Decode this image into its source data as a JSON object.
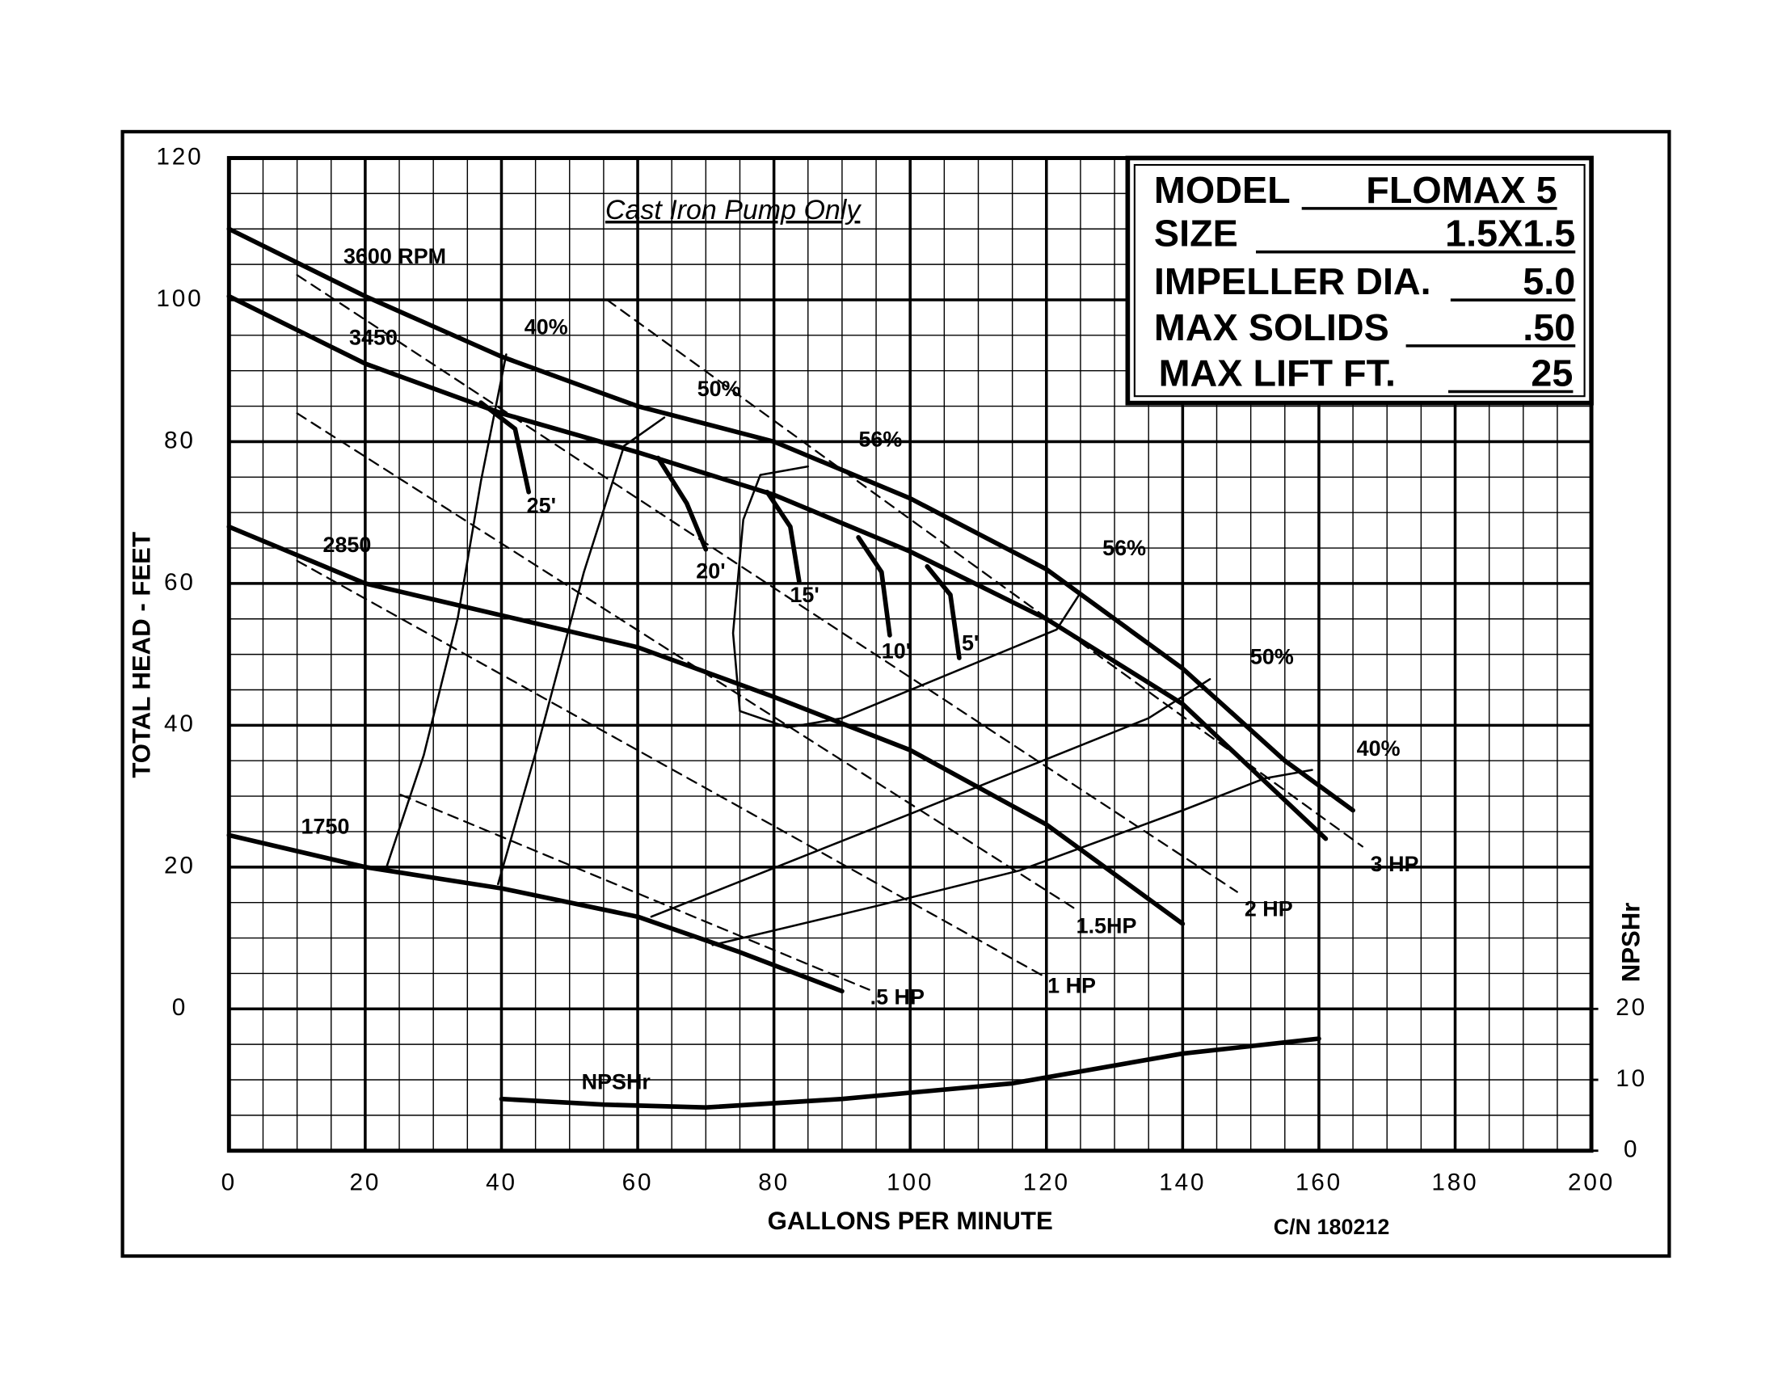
{
  "chart_data": {
    "type": "line",
    "title": "Cast Iron Pump Only",
    "xlabel": "GALLONS PER MINUTE",
    "ylabel": "TOTAL HEAD - FEET",
    "y2label": "NPSHr",
    "note": "C/N 180212",
    "xlim": [
      0,
      200
    ],
    "ylim": [
      -20,
      120
    ],
    "y2lim": [
      0,
      140
    ],
    "xticks": [
      0,
      20,
      40,
      60,
      80,
      100,
      120,
      140,
      160,
      180,
      200
    ],
    "yticks": [
      0,
      20,
      40,
      60,
      80,
      100,
      120
    ],
    "y2ticks": [
      0,
      10,
      20
    ],
    "grid": true,
    "minor_grid_step": 5,
    "info": [
      {
        "label": "MODEL",
        "value": "FLOMAX 5"
      },
      {
        "label": "SIZE",
        "value": "1.5X1.5"
      },
      {
        "label": "IMPELLER DIA.",
        "value": "5.0"
      },
      {
        "label": "MAX SOLIDS",
        "value": ".50"
      },
      {
        "label": "MAX LIFT FT.",
        "value": "25"
      }
    ],
    "series": [
      {
        "name": "3600 RPM",
        "style": "bold",
        "color": "#000000",
        "x": [
          0,
          20,
          40,
          60,
          80,
          100,
          120,
          140,
          155,
          165
        ],
        "y": [
          110,
          100.5,
          92,
          85,
          80,
          72,
          62,
          48,
          35,
          28
        ]
      },
      {
        "name": "3450",
        "style": "bold",
        "color": "#000000",
        "x": [
          0,
          20,
          40,
          60,
          80,
          100,
          120,
          140,
          161
        ],
        "y": [
          100.5,
          91,
          84,
          78.5,
          72.5,
          64.5,
          55,
          43,
          24
        ]
      },
      {
        "name": "2850",
        "style": "bold",
        "color": "#000000",
        "x": [
          0,
          20,
          40,
          60,
          80,
          100,
          120,
          140
        ],
        "y": [
          68,
          60,
          55.5,
          51,
          44,
          36.5,
          26,
          12
        ]
      },
      {
        "name": "1750",
        "style": "bold",
        "color": "#000000",
        "x": [
          0,
          20,
          40,
          60,
          75,
          90
        ],
        "y": [
          24.5,
          20,
          17,
          13,
          8,
          2.5
        ]
      },
      {
        "name": "40%",
        "style": "thin",
        "color": "#000000",
        "x": [
          23.2,
          28.6,
          33.6,
          37,
          40.7
        ],
        "y": [
          20.2,
          35.8,
          55.2,
          74.5,
          92.3
        ]
      },
      {
        "name": "50%",
        "style": "thin",
        "color": "#000000",
        "x": [
          39.5,
          45.4,
          52.1,
          58,
          63.9
        ],
        "y": [
          17.6,
          37.4,
          61.6,
          79.4,
          83.4
        ]
      },
      {
        "name": "56%",
        "style": "thin",
        "color": "#000000",
        "x": [
          85,
          78,
          75.5,
          74,
          75,
          82
        ],
        "y": [
          76.5,
          75.3,
          69,
          53,
          42,
          39.7
        ]
      },
      {
        "name": "56%",
        "style": "thin",
        "color": "#000000",
        "x": [
          82,
          90,
          121.5,
          125
        ],
        "y": [
          39.7,
          41,
          53.5,
          58.7
        ]
      },
      {
        "name": "50%",
        "style": "thin",
        "color": "#000000",
        "x": [
          62,
          100,
          135,
          144
        ],
        "y": [
          13,
          27.5,
          41,
          46.5
        ]
      },
      {
        "name": "40%",
        "style": "thin",
        "color": "#000000",
        "x": [
          71,
          95,
          116,
          140,
          152,
          159
        ],
        "y": [
          9,
          14.5,
          19.5,
          28,
          32.5,
          33.7
        ]
      },
      {
        "name": "25'",
        "style": "bold",
        "color": "#000000",
        "x": [
          37,
          42,
          44
        ],
        "y": [
          85.5,
          81.8,
          72.9
        ]
      },
      {
        "name": "20'",
        "style": "bold",
        "color": "#000000",
        "x": [
          63,
          67.2,
          70
        ],
        "y": [
          77.7,
          71.3,
          64.8
        ]
      },
      {
        "name": "15'",
        "style": "bold",
        "color": "#000000",
        "x": [
          79,
          82.4,
          83.7
        ],
        "y": [
          72.9,
          68,
          60.3
        ]
      },
      {
        "name": "10'",
        "style": "bold",
        "color": "#000000",
        "x": [
          92.4,
          95.8,
          97
        ],
        "y": [
          66.5,
          61.6,
          52.7
        ]
      },
      {
        "name": "5'",
        "style": "bold",
        "color": "#000000",
        "x": [
          102.5,
          105.9,
          107.2
        ],
        "y": [
          62.4,
          58.4,
          49.5
        ]
      },
      {
        "name": "3 HP",
        "style": "dashed",
        "color": "#000000",
        "x": [
          55.5,
          166.4
        ],
        "y": [
          100,
          22.9
        ]
      },
      {
        "name": "2 HP",
        "style": "dashed",
        "color": "#000000",
        "x": [
          10,
          148
        ],
        "y": [
          103.5,
          16.5
        ]
      },
      {
        "name": "1.5HP",
        "style": "dashed",
        "color": "#000000",
        "x": [
          10,
          124.4
        ],
        "y": [
          84,
          14
        ]
      },
      {
        "name": "1 HP",
        "style": "dashed",
        "color": "#000000",
        "x": [
          10,
          120
        ],
        "y": [
          63.2,
          4.4
        ]
      },
      {
        "name": ".5 HP",
        "style": "dashed",
        "color": "#000000",
        "x": [
          25.2,
          94
        ],
        "y": [
          30.2,
          2.7
        ]
      },
      {
        "name": "NPSHr",
        "style": "bold",
        "color": "#000000",
        "axis": "y2",
        "x": [
          40,
          55,
          70,
          90,
          115,
          140,
          160
        ],
        "y": [
          7.3,
          6.5,
          6.1,
          7.3,
          9.5,
          13.7,
          15.8
        ]
      }
    ]
  }
}
